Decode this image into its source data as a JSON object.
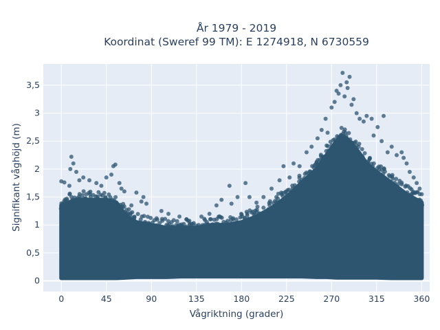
{
  "chart_data": {
    "type": "scatter",
    "title": "År 1979 - 2019",
    "subtitle": "Koordinat (Sweref 99 TM): E 1274918, N 6730559",
    "xlabel": "Vågriktning (grader)",
    "ylabel": "Signifikant våghöjd (m)",
    "xlim": [
      -18,
      368
    ],
    "ylim": [
      -0.19,
      3.88
    ],
    "x_ticks": [
      0,
      45,
      90,
      135,
      180,
      225,
      270,
      315,
      360
    ],
    "x_tick_labels": [
      "0",
      "45",
      "90",
      "135",
      "180",
      "225",
      "270",
      "315",
      "360"
    ],
    "y_ticks": [
      0,
      0.5,
      1,
      1.5,
      2,
      2.5,
      3,
      3.5
    ],
    "y_tick_labels": [
      "0",
      "0,5",
      "1",
      "1,5",
      "2",
      "2,5",
      "3",
      "3,5"
    ],
    "grid": true,
    "marker_color": "#2e5570",
    "plot_background": "#e5ecf6",
    "series": [
      {
        "dense_band": {
          "x": [
            0,
            15,
            30,
            45,
            55,
            65,
            75,
            90,
            105,
            120,
            135,
            150,
            165,
            180,
            195,
            210,
            225,
            240,
            255,
            265,
            275,
            280,
            285,
            295,
            305,
            315,
            330,
            345,
            360
          ],
          "y_low": [
            0.05,
            0.05,
            0.05,
            0.05,
            0.05,
            0.06,
            0.07,
            0.07,
            0.07,
            0.08,
            0.08,
            0.08,
            0.08,
            0.08,
            0.08,
            0.08,
            0.08,
            0.08,
            0.07,
            0.07,
            0.06,
            0.06,
            0.06,
            0.06,
            0.06,
            0.06,
            0.05,
            0.05,
            0.05
          ],
          "y_high": [
            1.35,
            1.45,
            1.45,
            1.45,
            1.4,
            1.15,
            1.05,
            1.0,
            0.95,
            0.95,
            0.95,
            1.0,
            1.0,
            1.05,
            1.15,
            1.3,
            1.5,
            1.75,
            2.0,
            2.25,
            2.5,
            2.6,
            2.55,
            2.35,
            2.1,
            1.95,
            1.75,
            1.55,
            1.4
          ]
        },
        "outliers": [
          [
            0,
            1.78
          ],
          [
            3,
            1.76
          ],
          [
            8,
            1.7
          ],
          [
            12,
            2.1
          ],
          [
            10,
            2.22
          ],
          [
            9,
            2.0
          ],
          [
            15,
            1.95
          ],
          [
            18,
            1.8
          ],
          [
            22,
            1.85
          ],
          [
            28,
            1.8
          ],
          [
            35,
            1.75
          ],
          [
            40,
            1.7
          ],
          [
            45,
            1.85
          ],
          [
            50,
            1.9
          ],
          [
            52,
            2.05
          ],
          [
            54,
            2.08
          ],
          [
            58,
            1.75
          ],
          [
            60,
            1.65
          ],
          [
            63,
            1.6
          ],
          [
            70,
            1.35
          ],
          [
            75,
            1.58
          ],
          [
            80,
            1.42
          ],
          [
            82,
            1.5
          ],
          [
            85,
            1.38
          ],
          [
            100,
            1.25
          ],
          [
            107,
            1.2
          ],
          [
            118,
            1.15
          ],
          [
            125,
            1.1
          ],
          [
            140,
            1.15
          ],
          [
            148,
            1.2
          ],
          [
            155,
            1.35
          ],
          [
            160,
            1.45
          ],
          [
            170,
            1.38
          ],
          [
            168,
            1.7
          ],
          [
            176,
            1.5
          ],
          [
            184,
            1.75
          ],
          [
            188,
            1.5
          ],
          [
            195,
            1.4
          ],
          [
            202,
            1.5
          ],
          [
            210,
            1.65
          ],
          [
            218,
            1.8
          ],
          [
            222,
            2.05
          ],
          [
            228,
            1.85
          ],
          [
            232,
            2.1
          ],
          [
            238,
            2.05
          ],
          [
            245,
            2.3
          ],
          [
            250,
            2.4
          ],
          [
            256,
            2.55
          ],
          [
            260,
            2.7
          ],
          [
            264,
            2.9
          ],
          [
            266,
            2.65
          ],
          [
            270,
            3.1
          ],
          [
            273,
            3.2
          ],
          [
            275,
            3.4
          ],
          [
            277,
            3.35
          ],
          [
            279,
            3.5
          ],
          [
            281,
            3.72
          ],
          [
            283,
            3.3
          ],
          [
            285,
            3.55
          ],
          [
            288,
            3.65
          ],
          [
            286,
            3.45
          ],
          [
            290,
            3.15
          ],
          [
            292,
            3.25
          ],
          [
            295,
            3.0
          ],
          [
            298,
            2.9
          ],
          [
            302,
            2.85
          ],
          [
            305,
            2.95
          ],
          [
            310,
            2.9
          ],
          [
            312,
            2.6
          ],
          [
            316,
            2.75
          ],
          [
            320,
            2.5
          ],
          [
            322,
            2.95
          ],
          [
            326,
            2.3
          ],
          [
            330,
            2.4
          ],
          [
            335,
            2.25
          ],
          [
            340,
            2.3
          ],
          [
            342,
            2.2
          ],
          [
            345,
            2.1
          ],
          [
            348,
            1.95
          ],
          [
            352,
            1.85
          ],
          [
            355,
            1.75
          ],
          [
            358,
            1.65
          ],
          [
            360,
            1.55
          ]
        ]
      }
    ]
  }
}
